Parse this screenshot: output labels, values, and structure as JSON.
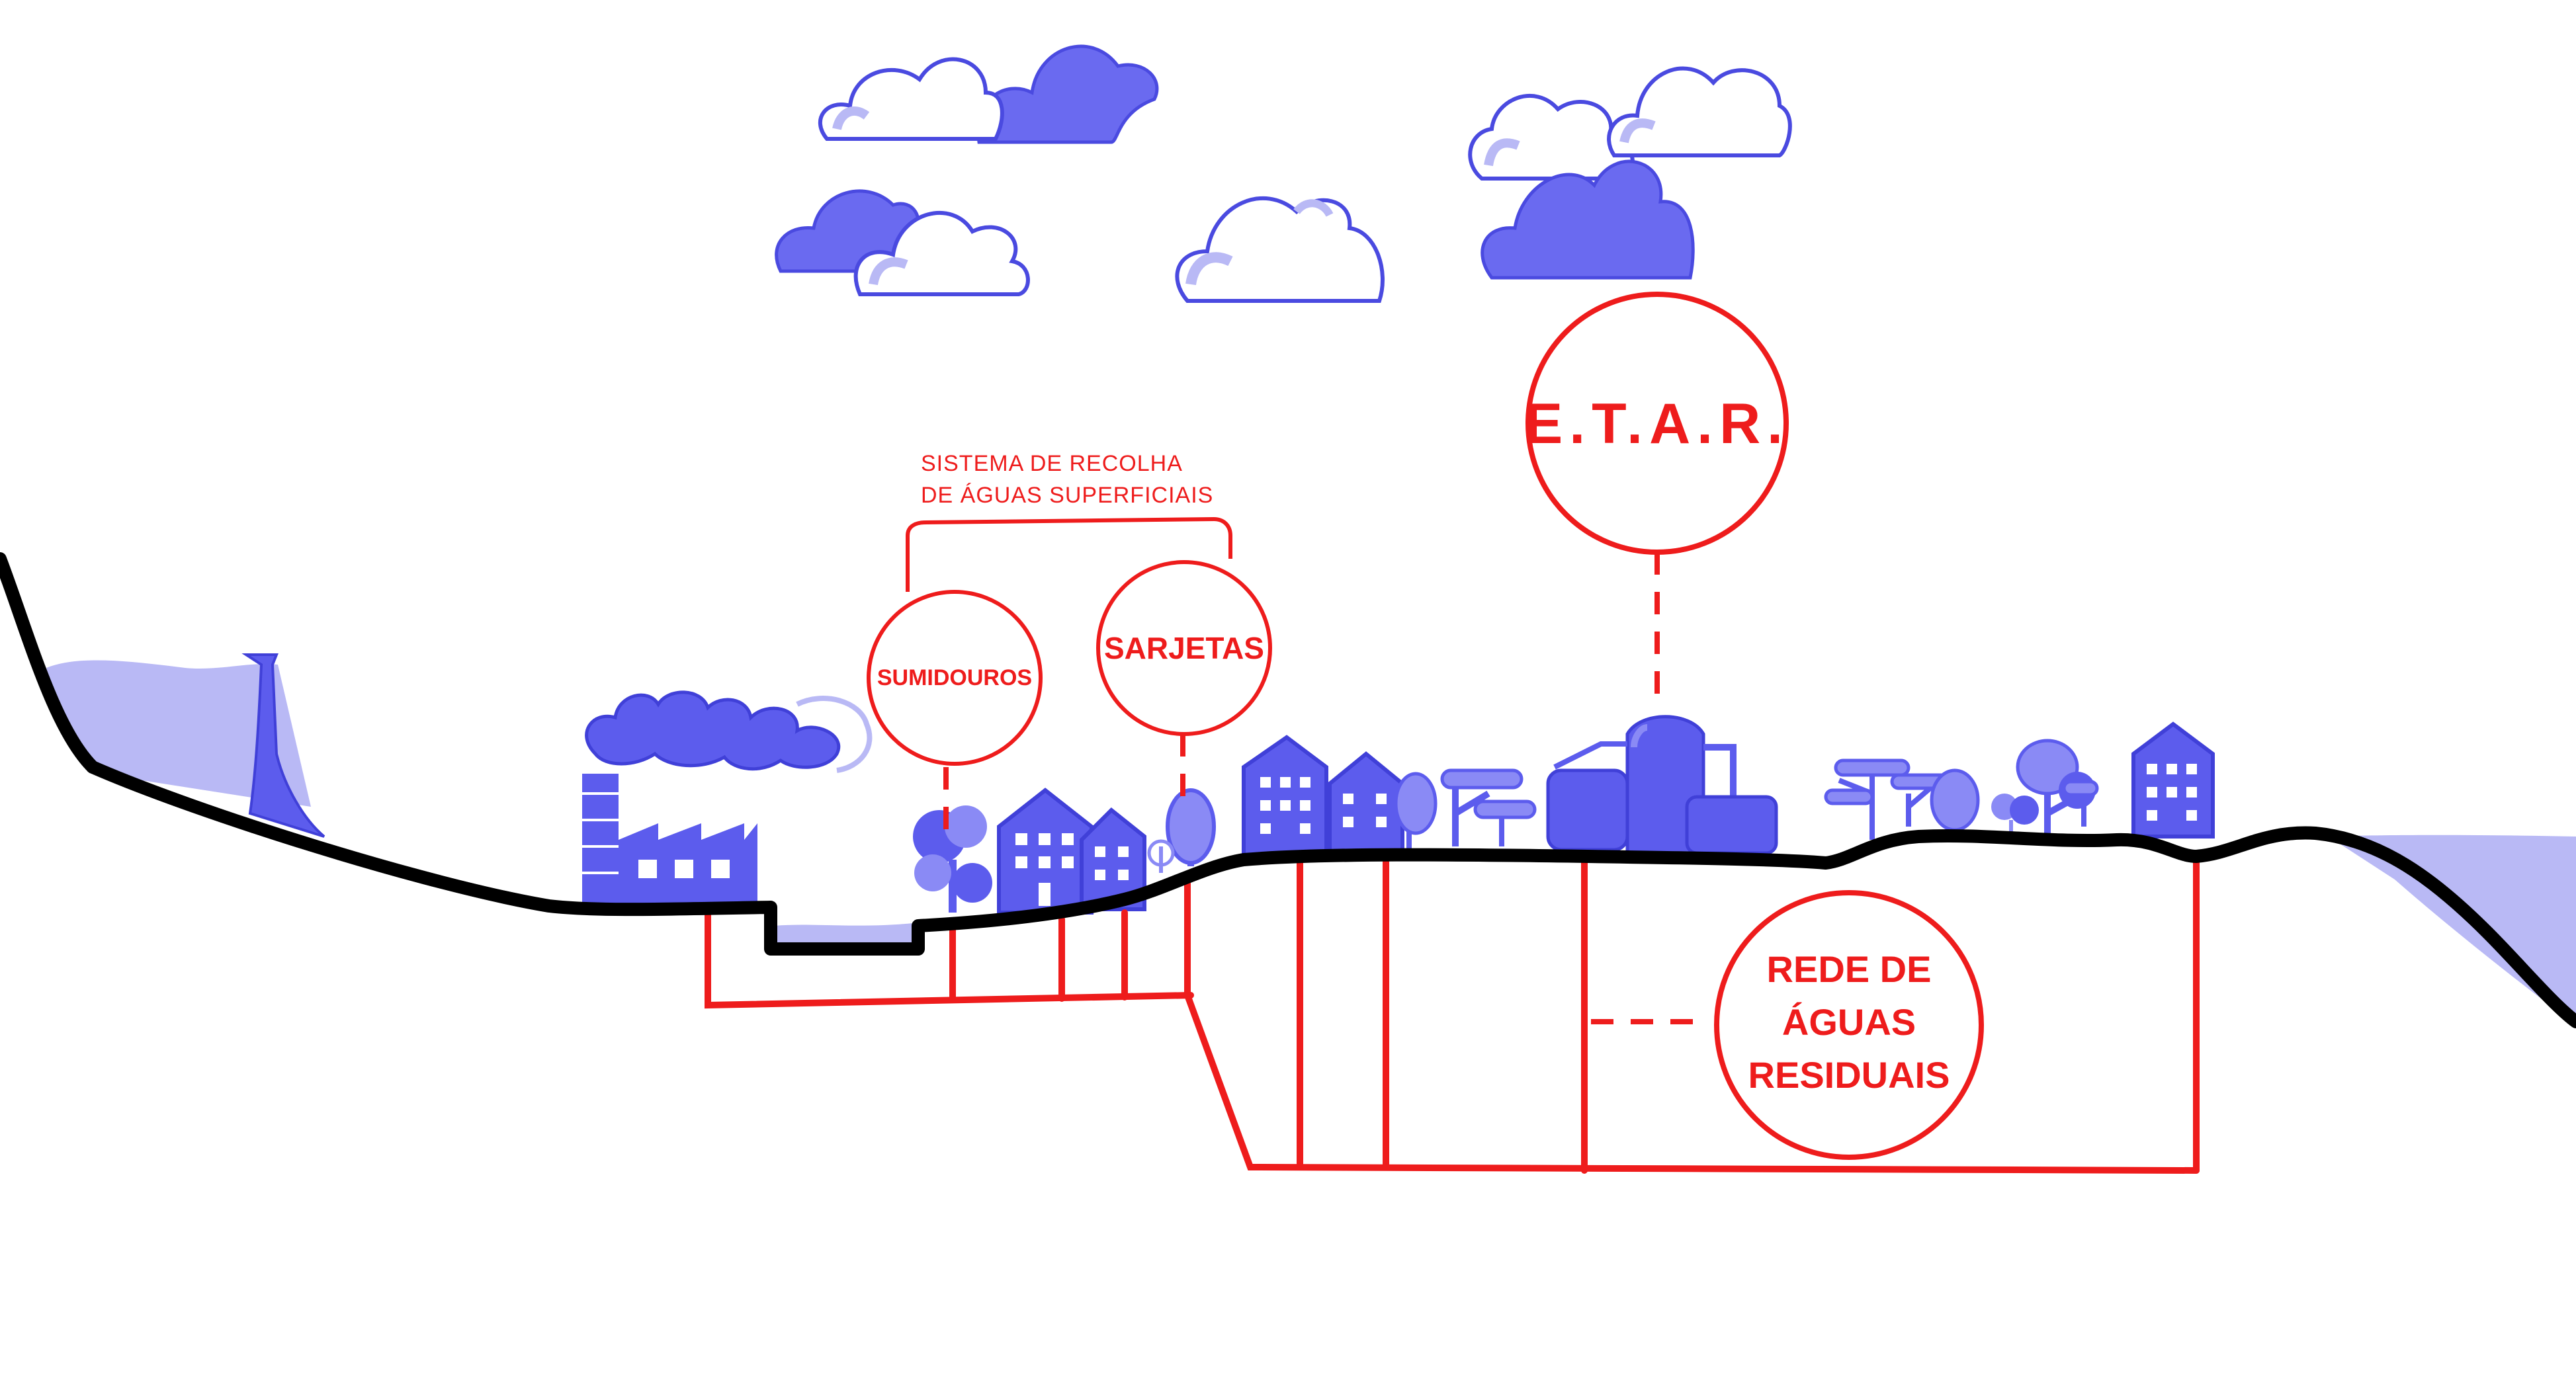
{
  "labels": {
    "surface_system_line1": "SISTEMA DE RECOLHA",
    "surface_system_line2": "DE ÁGUAS SUPERFICIAIS",
    "sumidouros": "SUMIDOUROS",
    "sarjetas": "SARJETAS",
    "etar": "E.T.A.R.",
    "wastewater_line1": "REDE DE",
    "wastewater_line2": "ÁGUAS",
    "wastewater_line3": "RESIDUAIS"
  },
  "colors": {
    "ground": "#000000",
    "network": "#ee1c1c",
    "buildings": "#5c5ced",
    "buildings_dark": "#4040d8",
    "water": "#b9b9f5",
    "cloud_light": "#ffffff",
    "cloud_dark": "#6a6af0"
  },
  "icons": [
    "cloud-icon",
    "factory-icon",
    "chimney-icon",
    "house-icon",
    "tree-icon",
    "treatment-tank-icon"
  ]
}
